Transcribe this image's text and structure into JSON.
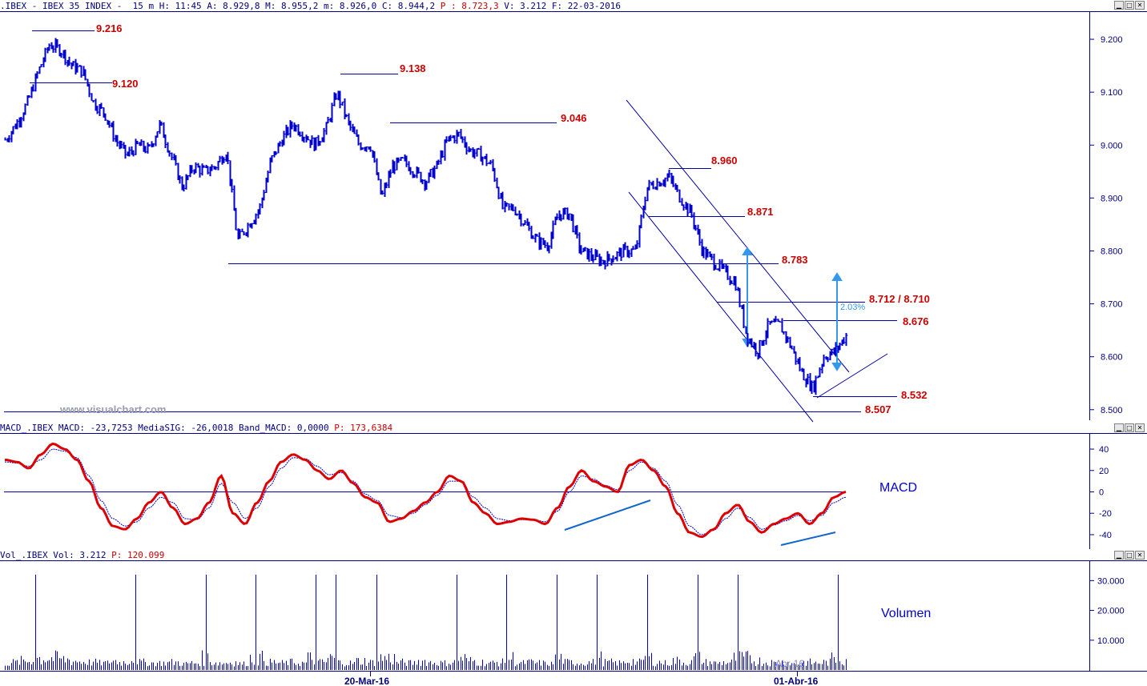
{
  "header": {
    "symbol": ".IBEX - IBEX 35 INDEX -",
    "interval": "15 m",
    "h": "H: 11:45",
    "a": "A: 8.929,8",
    "m": "M: 8.955,2",
    "mn": "m: 8.926,0",
    "c": "C: 8.944,2",
    "p": "P : 8.723,3",
    "v": "V: 3.212",
    "f": "F: 22-03-2016"
  },
  "macd_header": {
    "name": "MACD_.IBEX",
    "macd": "MACD: -23,7253",
    "signal": "MediaSIG: -26,0018",
    "band": "Band_MACD: 0,0000",
    "p": "P: 173,6384"
  },
  "vol_header": {
    "name": "Vol_.IBEX",
    "vol": "Vol: 3.212",
    "p": "P: 120.099"
  },
  "watermark": "www.visualchart.com",
  "labels": {
    "macd": "MACD",
    "volume": "Volumen",
    "pct": "2.03%",
    "abr": "Abr-16"
  },
  "colors": {
    "price": "#0000cc",
    "macd": "#dd0000",
    "signal": "#0000cc",
    "levels": "#cc0000",
    "arrows": "#3399ee",
    "axis": "#000080"
  },
  "chart_data": [
    {
      "type": "line",
      "series": [
        {
          "values": [
            9010,
            9040,
            9080,
            9140,
            9190,
            9180,
            9150,
            9140,
            9080,
            9060,
            9010,
            8980,
            9000,
            8990,
            9040,
            8980,
            8920,
            8960,
            8950,
            8960,
            8990,
            8820,
            8850,
            8880,
            8970,
            9010,
            9040,
            9020,
            9000,
            9030,
            9100,
            9040,
            9000,
            9000,
            8900,
            8960,
            8970,
            8950,
            8930,
            8960,
            9010,
            9020,
            8990,
            8980,
            8960,
            8880,
            8880,
            8850,
            8820,
            8810,
            8870,
            8870,
            8800,
            8790,
            8780,
            8790,
            8800,
            8800,
            8920,
            8930,
            8940,
            8900,
            8870,
            8800,
            8780,
            8760,
            8740,
            8640,
            8610,
            8660,
            8660,
            8620,
            8570,
            8540,
            8600,
            8610,
            8640
          ],
          "style": "ohlc-bars"
        }
      ],
      "x_ticks": [
        "20-Mar-16",
        "01-Abr-16"
      ],
      "ylim": [
        8480,
        9250
      ],
      "y_ticks": [
        "9.200",
        "9.100",
        "9.000",
        "8.900",
        "8.800",
        "8.700",
        "8.600",
        "8.500"
      ],
      "levels": [
        "9.216",
        "9.120",
        "9.138",
        "9.046",
        "8.960",
        "8.871",
        "8.783",
        "8.712 / 8.710",
        "8.676",
        "8.532",
        "8.507"
      ],
      "level_values": [
        9216,
        9120,
        9138,
        9046,
        8960,
        8871,
        8783,
        8711,
        8676,
        8532,
        8507
      ],
      "annotations": [
        "2.03%",
        "descending channel",
        "rising support line",
        "measured move arrows"
      ]
    },
    {
      "type": "line",
      "title": "MACD",
      "series": [
        {
          "name": "MACD",
          "values": [
            30,
            28,
            22,
            35,
            45,
            40,
            30,
            10,
            -15,
            -32,
            -35,
            -25,
            -10,
            0,
            -15,
            -30,
            -25,
            -10,
            15,
            -20,
            -30,
            -10,
            10,
            28,
            35,
            30,
            20,
            12,
            20,
            8,
            -5,
            -10,
            -28,
            -25,
            -18,
            -10,
            0,
            15,
            10,
            -10,
            -20,
            -30,
            -28,
            -25,
            -26,
            -30,
            -15,
            5,
            20,
            10,
            5,
            0,
            25,
            30,
            20,
            5,
            -20,
            -38,
            -42,
            -35,
            -20,
            -12,
            -28,
            -38,
            -30,
            -25,
            -20,
            -30,
            -20,
            -5,
            0
          ]
        },
        {
          "name": "MediaSIG",
          "values": [
            28,
            27,
            24,
            30,
            40,
            38,
            32,
            15,
            -8,
            -25,
            -32,
            -28,
            -15,
            -5,
            -10,
            -25,
            -26,
            -15,
            8,
            -10,
            -25,
            -15,
            5,
            22,
            32,
            31,
            24,
            16,
            18,
            10,
            -2,
            -8,
            -22,
            -24,
            -20,
            -12,
            -3,
            10,
            10,
            -5,
            -15,
            -25,
            -27,
            -26,
            -26,
            -28,
            -18,
            0,
            15,
            12,
            6,
            2,
            20,
            28,
            22,
            10,
            -12,
            -32,
            -40,
            -36,
            -25,
            -15,
            -24,
            -35,
            -31,
            -27,
            -22,
            -27,
            -22,
            -10,
            -5
          ]
        }
      ],
      "ylim": [
        -52,
        52
      ],
      "y_ticks": [
        "40",
        "20",
        "0",
        "-20",
        "-40"
      ]
    },
    {
      "type": "bar",
      "title": "Volumen",
      "series": [
        {
          "name": "Vol",
          "values": [
            2000,
            3000,
            4000,
            32000,
            12000,
            6000,
            5000,
            4000,
            3500,
            3000,
            2500,
            4000,
            3000,
            32000,
            3000,
            2500,
            2500,
            3000,
            2000,
            2500,
            32000,
            3000,
            2500,
            3000,
            2000,
            32000,
            13000,
            3000,
            2500,
            3000,
            2500,
            32000,
            3000,
            32000,
            3000,
            2500,
            4000,
            3000,
            32000,
            12000,
            3000,
            2500,
            4000,
            3000,
            2500,
            3000,
            32000,
            4000,
            3000,
            2500,
            3000,
            32000,
            2500,
            3000,
            2500,
            2000,
            32000,
            3000,
            2500,
            3000,
            32000,
            3000,
            2500,
            4000,
            3000,
            32000,
            3000,
            2500,
            4000,
            3000,
            32000,
            3000,
            2500,
            3000,
            32000,
            18000,
            4000,
            3000,
            2500,
            3000,
            2000,
            3000,
            2500,
            3000,
            32000,
            9000
          ]
        }
      ],
      "ylim": [
        0,
        36000
      ],
      "y_ticks": [
        "30.000",
        "20.000",
        "10.000"
      ]
    }
  ]
}
